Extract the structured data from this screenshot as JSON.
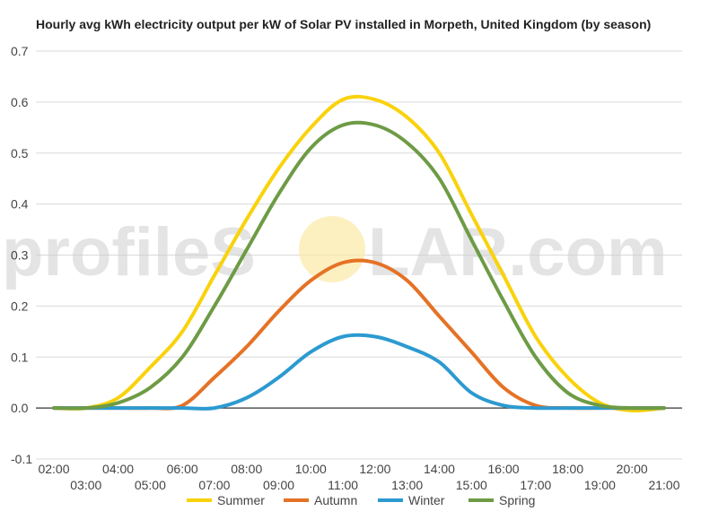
{
  "chart_data": {
    "type": "line",
    "title": "Hourly avg kWh electricity output per kW of Solar PV installed in Morpeth, United Kingdom (by season)",
    "xlabel": "",
    "ylabel": "",
    "ylim": [
      -0.1,
      0.7
    ],
    "yticks": [
      "-0.1",
      "0.0",
      "0.1",
      "0.2",
      "0.3",
      "0.4",
      "0.5",
      "0.6",
      "0.7"
    ],
    "x": [
      "02:00",
      "03:00",
      "04:00",
      "05:00",
      "06:00",
      "07:00",
      "08:00",
      "09:00",
      "10:00",
      "11:00",
      "12:00",
      "13:00",
      "14:00",
      "15:00",
      "16:00",
      "17:00",
      "18:00",
      "19:00",
      "20:00",
      "21:00"
    ],
    "grid": true,
    "legend": "bottom",
    "series": [
      {
        "name": "Summer",
        "color": "#f9d20c",
        "values": [
          0,
          0,
          0.02,
          0.08,
          0.15,
          0.26,
          0.37,
          0.47,
          0.55,
          0.605,
          0.605,
          0.57,
          0.5,
          0.38,
          0.26,
          0.14,
          0.06,
          0.01,
          -0.005,
          0
        ]
      },
      {
        "name": "Autumn",
        "color": "#e57225",
        "values": [
          0,
          0,
          0,
          0,
          0.005,
          0.06,
          0.12,
          0.19,
          0.25,
          0.285,
          0.285,
          0.25,
          0.18,
          0.11,
          0.04,
          0.005,
          0,
          0,
          0,
          0
        ]
      },
      {
        "name": "Winter",
        "color": "#2c9ad0",
        "values": [
          0,
          0,
          0,
          0,
          0,
          0,
          0.02,
          0.06,
          0.11,
          0.14,
          0.14,
          0.12,
          0.09,
          0.03,
          0.005,
          0,
          0,
          0,
          0,
          0
        ]
      },
      {
        "name": "Spring",
        "color": "#6e9b45",
        "values": [
          0,
          0,
          0.01,
          0.04,
          0.1,
          0.2,
          0.31,
          0.42,
          0.51,
          0.555,
          0.555,
          0.52,
          0.45,
          0.33,
          0.21,
          0.1,
          0.03,
          0.005,
          0,
          0
        ]
      }
    ]
  },
  "watermark": {
    "text_left": "profileS",
    "text_right": "LAR.com",
    "sun_color": "#fbe9a6"
  }
}
